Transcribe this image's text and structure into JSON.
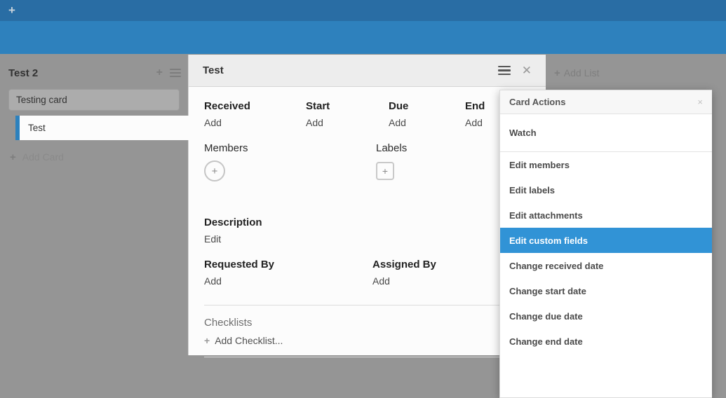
{
  "topbar": {
    "add_icon": "+"
  },
  "board": {
    "list": {
      "title": "Test 2",
      "cards": [
        {
          "title": "Testing card",
          "selected": false
        },
        {
          "title": "Test",
          "selected": true
        }
      ],
      "add_card_label": "Add Card"
    },
    "add_list_label": "Add List"
  },
  "card_panel": {
    "title": "Test",
    "date_fields": [
      {
        "label": "Received",
        "action": "Add"
      },
      {
        "label": "Start",
        "action": "Add"
      },
      {
        "label": "Due",
        "action": "Add"
      },
      {
        "label": "End",
        "action": "Add"
      }
    ],
    "members": {
      "label": "Members",
      "add_icon": "+"
    },
    "labels": {
      "label": "Labels",
      "add_icon": "+"
    },
    "description": {
      "label": "Description",
      "action": "Edit"
    },
    "requested_by": {
      "label": "Requested By",
      "action": "Add"
    },
    "assigned_by": {
      "label": "Assigned By",
      "action": "Add"
    },
    "checklists": {
      "label": "Checklists",
      "action": "Add Checklist..."
    }
  },
  "card_actions_menu": {
    "title": "Card Actions",
    "close_icon": "×",
    "items": [
      {
        "label": "Watch"
      },
      {
        "label": "Edit members"
      },
      {
        "label": "Edit labels"
      },
      {
        "label": "Edit attachments"
      },
      {
        "label": "Edit custom fields",
        "highlighted": true
      },
      {
        "label": "Change received date"
      },
      {
        "label": "Change start date"
      },
      {
        "label": "Change due date"
      },
      {
        "label": "Change end date"
      }
    ]
  },
  "colors": {
    "topbar": "#296DA4",
    "subheader": "#2E81BD",
    "board_background": "#959595",
    "selected_card_accent": "#2D81BD",
    "menu_highlight": "#3193D6"
  }
}
